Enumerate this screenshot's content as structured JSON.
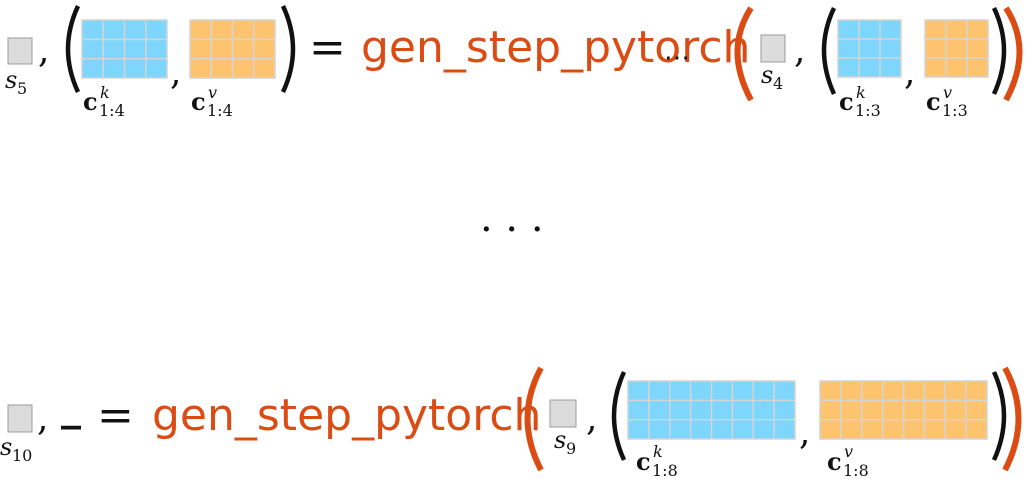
{
  "colors": {
    "state_fill": "#dcdcdc",
    "state_stroke": "#9a9a9a",
    "key_fill": "#7fd6fc",
    "value_fill": "#fec36e",
    "grid_stroke": "#d4d4d4",
    "function_color": "#db4c14",
    "text": "#111111"
  },
  "row1": {
    "state_out": {
      "symbol": "s",
      "subscript": "5"
    },
    "comma": ",",
    "equals": "=",
    "function": "gen_step_pytorch",
    "key_out": {
      "symbol": "c",
      "superscript": "k",
      "subscript": "1:4",
      "cols": 4
    },
    "value_out": {
      "symbol": "c",
      "superscript": "v",
      "subscript": "1:4",
      "cols": 4
    },
    "middle_dots": "⋯",
    "state_in": {
      "symbol": "s",
      "subscript": "4"
    },
    "key_in": {
      "symbol": "c",
      "superscript": "k",
      "subscript": "1:3",
      "cols": 3
    },
    "value_in": {
      "symbol": "c",
      "superscript": "v",
      "subscript": "1:3",
      "cols": 3
    }
  },
  "ellipsis": "· · ·",
  "row2": {
    "state_out": {
      "symbol": "s",
      "subscript": "10"
    },
    "comma": ",",
    "placeholder": "_",
    "equals": "=",
    "function": "gen_step_pytorch",
    "state_in": {
      "symbol": "s",
      "subscript": "9"
    },
    "key_in": {
      "symbol": "c",
      "superscript": "k",
      "subscript": "1:8",
      "cols": 8
    },
    "value_in": {
      "symbol": "c",
      "superscript": "v",
      "subscript": "1:8",
      "cols": 8
    }
  }
}
